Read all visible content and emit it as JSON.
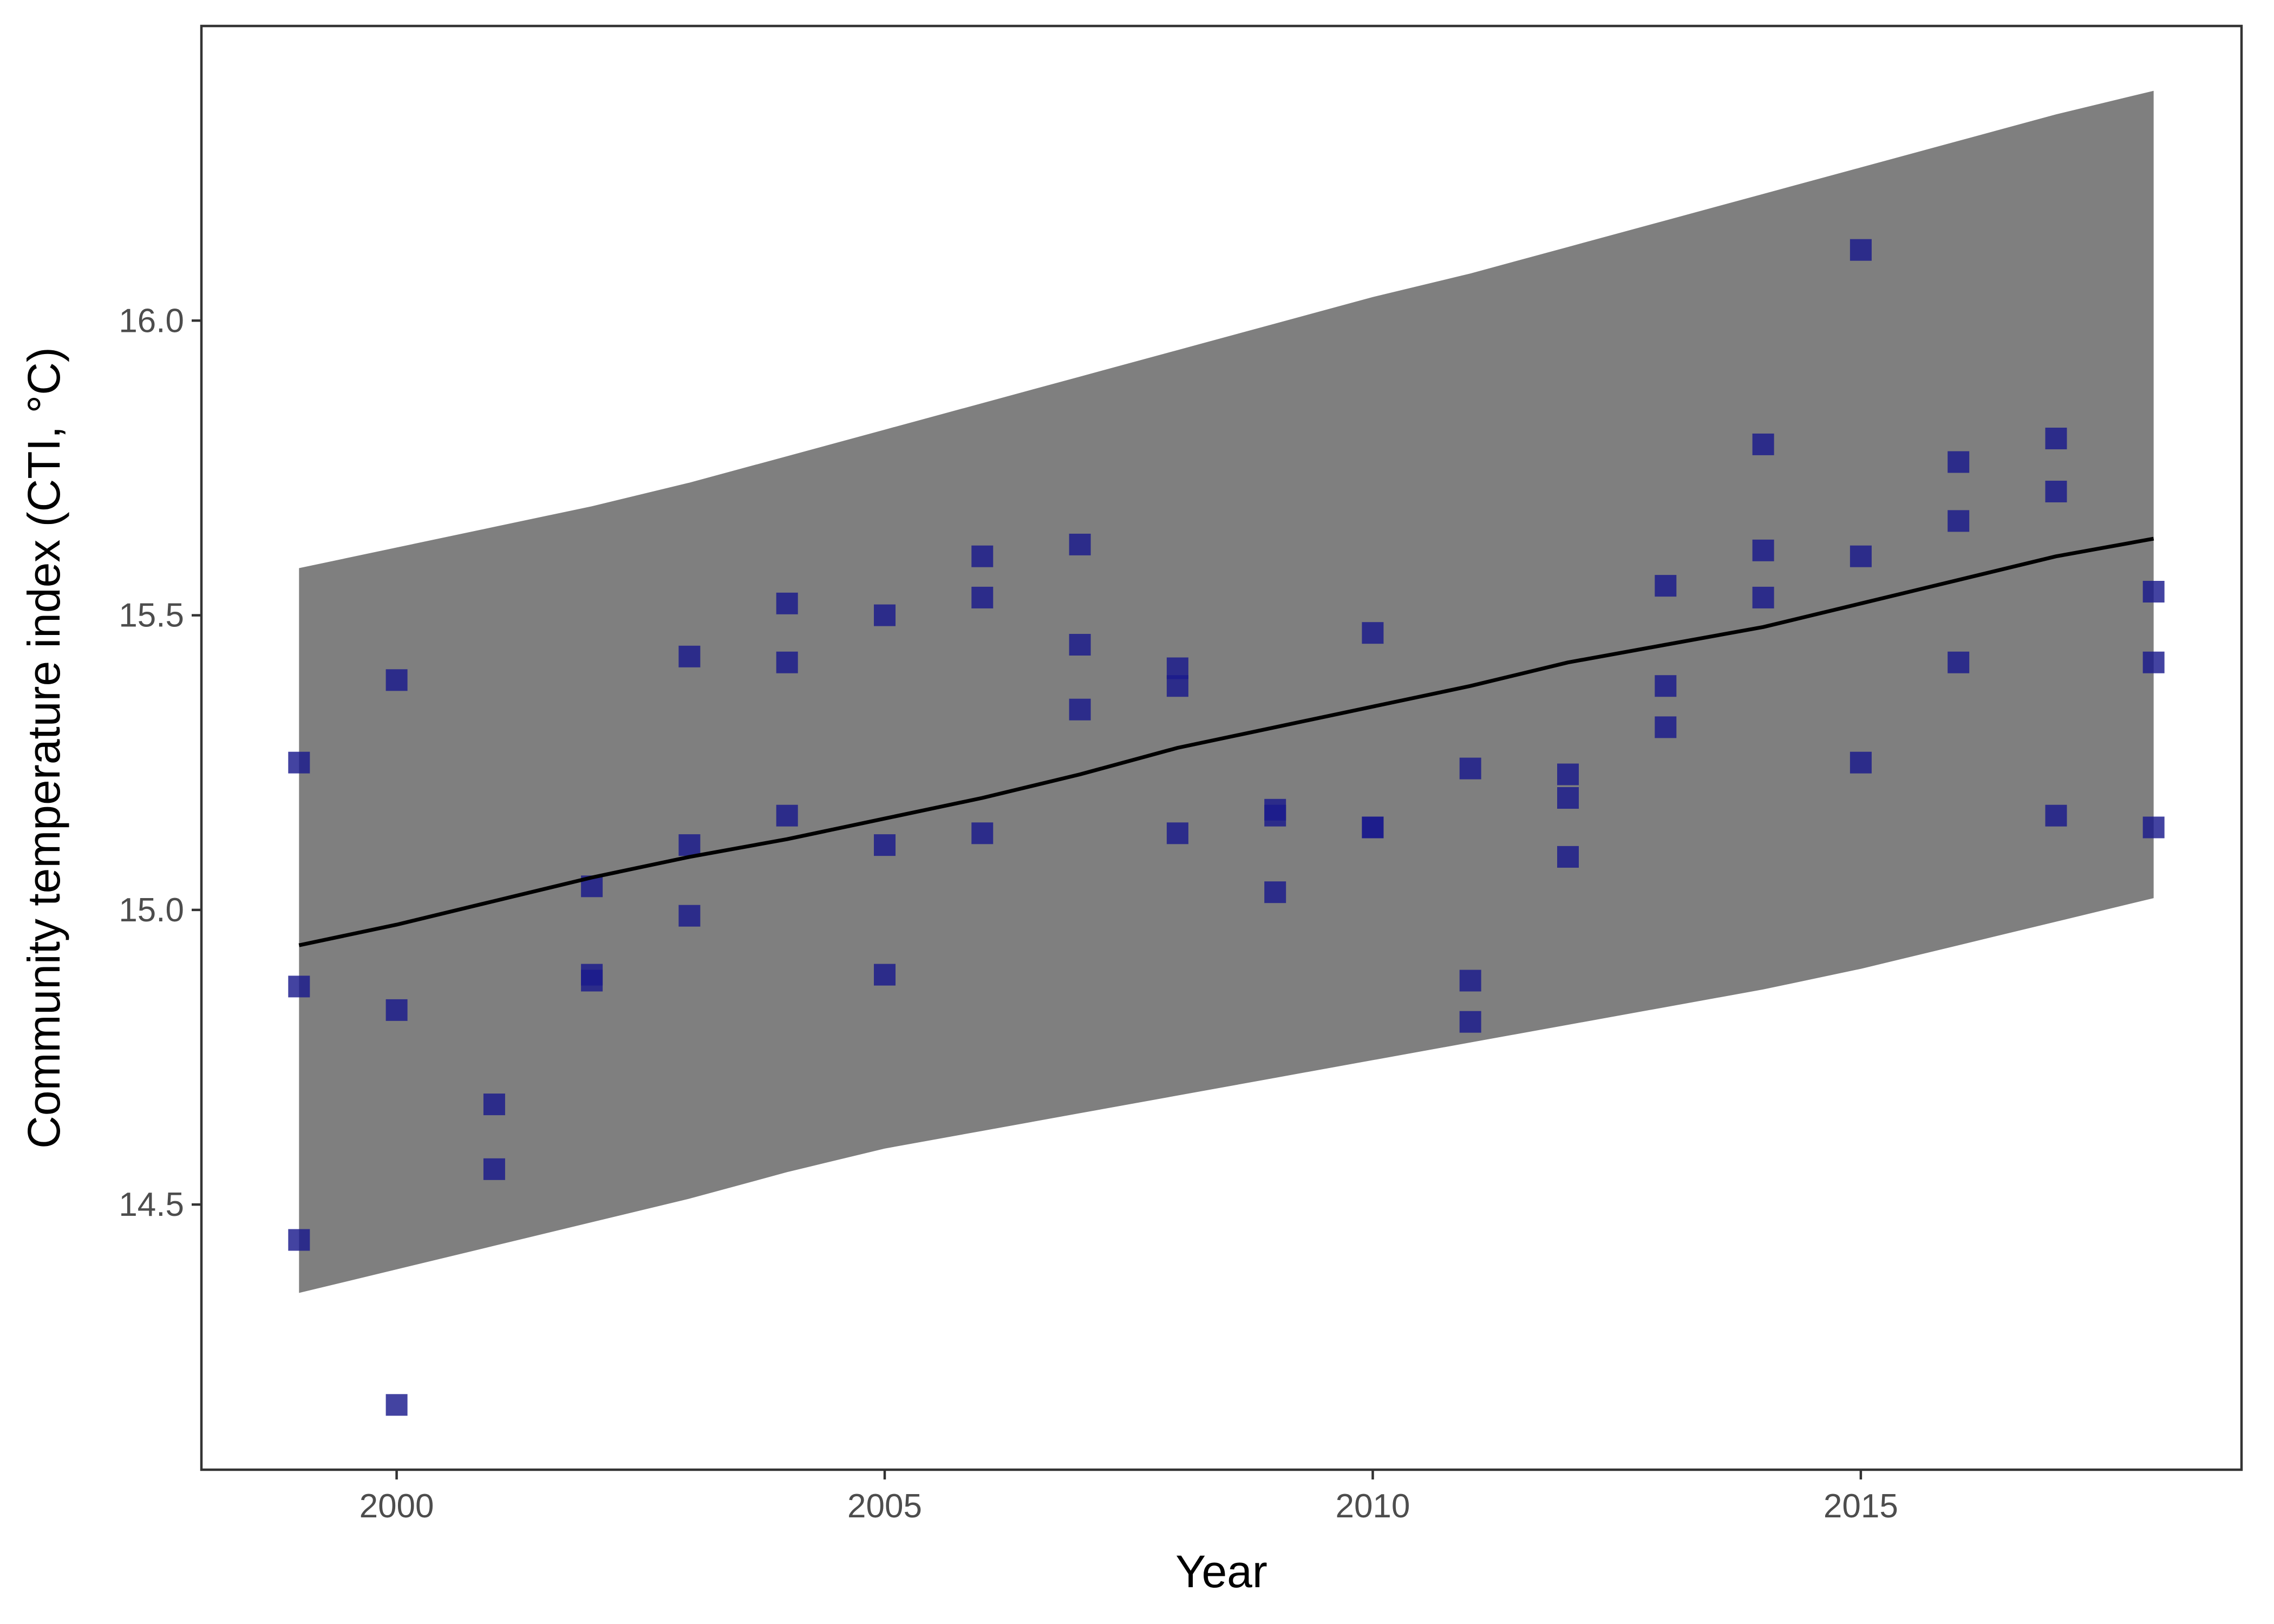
{
  "chart_data": {
    "type": "scatter",
    "title": "",
    "xlabel": "Year",
    "ylabel": "Community temperature index (CTI, °C)",
    "xlim": [
      1998.0,
      2018.9
    ],
    "ylim": [
      14.05,
      16.5
    ],
    "x_ticks": [
      2000,
      2005,
      2010,
      2015
    ],
    "x_tick_labels": [
      "2000",
      "2005",
      "2010",
      "2015"
    ],
    "y_ticks": [
      14.5,
      15.0,
      15.5,
      16.0
    ],
    "y_tick_labels": [
      "14.5",
      "15.0",
      "15.5",
      "16.0"
    ],
    "grid": false,
    "legend": "none",
    "colors": {
      "points": "#1a1a8c",
      "fit_line": "#000000",
      "band": "#7f7f7f",
      "frame": "#333333"
    },
    "points": [
      {
        "x": 1999,
        "y": 15.25
      },
      {
        "x": 1999,
        "y": 14.87
      },
      {
        "x": 1999,
        "y": 14.44
      },
      {
        "x": 2000,
        "y": 15.39
      },
      {
        "x": 2000,
        "y": 14.83
      },
      {
        "x": 2000,
        "y": 14.16
      },
      {
        "x": 2001,
        "y": 14.67
      },
      {
        "x": 2001,
        "y": 14.56
      },
      {
        "x": 2002,
        "y": 15.04
      },
      {
        "x": 2002,
        "y": 14.89
      },
      {
        "x": 2002,
        "y": 14.88
      },
      {
        "x": 2003,
        "y": 15.43
      },
      {
        "x": 2003,
        "y": 15.11
      },
      {
        "x": 2003,
        "y": 14.99
      },
      {
        "x": 2004,
        "y": 15.52
      },
      {
        "x": 2004,
        "y": 15.42
      },
      {
        "x": 2004,
        "y": 15.16
      },
      {
        "x": 2005,
        "y": 15.5
      },
      {
        "x": 2005,
        "y": 15.11
      },
      {
        "x": 2005,
        "y": 14.89
      },
      {
        "x": 2006,
        "y": 15.6
      },
      {
        "x": 2006,
        "y": 15.53
      },
      {
        "x": 2006,
        "y": 15.13
      },
      {
        "x": 2007,
        "y": 15.62
      },
      {
        "x": 2007,
        "y": 15.45
      },
      {
        "x": 2007,
        "y": 15.34
      },
      {
        "x": 2008,
        "y": 15.41
      },
      {
        "x": 2008,
        "y": 15.38
      },
      {
        "x": 2008,
        "y": 15.13
      },
      {
        "x": 2009,
        "y": 15.17
      },
      {
        "x": 2009,
        "y": 15.16
      },
      {
        "x": 2009,
        "y": 15.03
      },
      {
        "x": 2010,
        "y": 15.47
      },
      {
        "x": 2010,
        "y": 15.14
      },
      {
        "x": 2010,
        "y": 15.14
      },
      {
        "x": 2011,
        "y": 15.24
      },
      {
        "x": 2011,
        "y": 14.88
      },
      {
        "x": 2011,
        "y": 14.81
      },
      {
        "x": 2012,
        "y": 15.23
      },
      {
        "x": 2012,
        "y": 15.19
      },
      {
        "x": 2012,
        "y": 15.09
      },
      {
        "x": 2013,
        "y": 15.55
      },
      {
        "x": 2013,
        "y": 15.38
      },
      {
        "x": 2013,
        "y": 15.31
      },
      {
        "x": 2014,
        "y": 15.79
      },
      {
        "x": 2014,
        "y": 15.61
      },
      {
        "x": 2014,
        "y": 15.53
      },
      {
        "x": 2015,
        "y": 16.12
      },
      {
        "x": 2015,
        "y": 15.6
      },
      {
        "x": 2015,
        "y": 15.25
      },
      {
        "x": 2016,
        "y": 15.76
      },
      {
        "x": 2016,
        "y": 15.66
      },
      {
        "x": 2016,
        "y": 15.42
      },
      {
        "x": 2017,
        "y": 15.8
      },
      {
        "x": 2017,
        "y": 15.71
      },
      {
        "x": 2017,
        "y": 15.16
      },
      {
        "x": 2018,
        "y": 15.54
      },
      {
        "x": 2018,
        "y": 15.42
      },
      {
        "x": 2018,
        "y": 15.14
      }
    ],
    "fit": {
      "x": [
        1999,
        2000,
        2001,
        2002,
        2003,
        2004,
        2005,
        2006,
        2007,
        2008,
        2009,
        2010,
        2011,
        2012,
        2013,
        2014,
        2015,
        2016,
        2017,
        2018
      ],
      "y": [
        14.94,
        14.975,
        15.015,
        15.055,
        15.09,
        15.12,
        15.155,
        15.19,
        15.23,
        15.275,
        15.31,
        15.345,
        15.38,
        15.42,
        15.45,
        15.48,
        15.52,
        15.56,
        15.6,
        15.63
      ],
      "upper": [
        15.58,
        15.615,
        15.65,
        15.685,
        15.725,
        15.77,
        15.815,
        15.86,
        15.905,
        15.95,
        15.995,
        16.04,
        16.08,
        16.125,
        16.17,
        16.215,
        16.26,
        16.305,
        16.35,
        16.39
      ],
      "lower": [
        14.35,
        14.39,
        14.43,
        14.47,
        14.51,
        14.555,
        14.595,
        14.625,
        14.655,
        14.685,
        14.715,
        14.745,
        14.775,
        14.805,
        14.835,
        14.865,
        14.9,
        14.94,
        14.98,
        15.02
      ]
    }
  }
}
